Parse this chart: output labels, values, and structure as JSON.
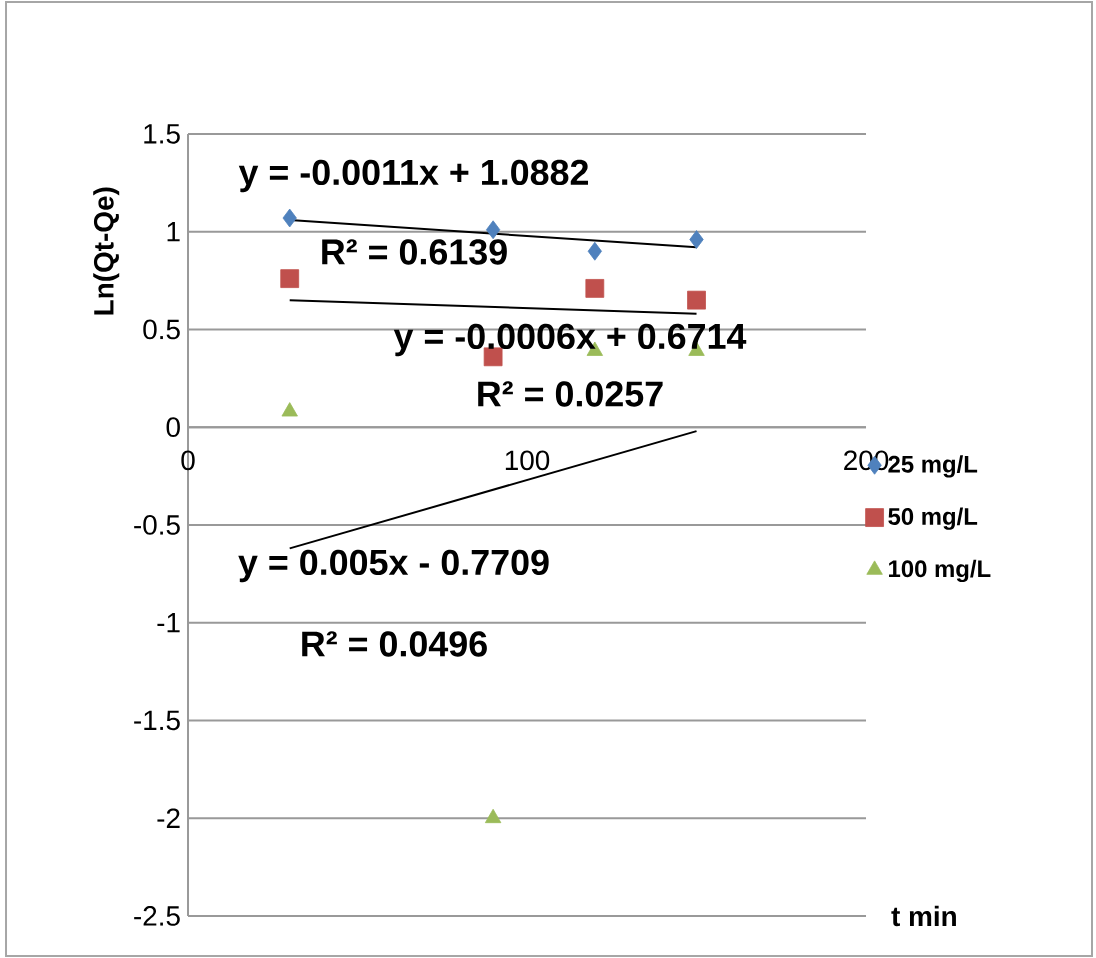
{
  "chart_data": {
    "type": "scatter",
    "xlabel": "t min",
    "ylabel": "Ln(Qt-Qe)",
    "xlim": [
      0,
      200
    ],
    "xticks": [
      0,
      100,
      200
    ],
    "ylim": [
      -2.5,
      1.5
    ],
    "yticks": [
      -2.5,
      -2,
      -1.5,
      -1,
      -0.5,
      0,
      0.5,
      1,
      1.5
    ],
    "grid": "y",
    "legend": "right",
    "series": [
      {
        "name": "25 mg/L",
        "color": "#4f81bd",
        "marker": "diamond",
        "x": [
          30,
          90,
          120,
          150
        ],
        "values": [
          1.07,
          1.01,
          0.9,
          0.96
        ]
      },
      {
        "name": "50 mg/L",
        "color": "#c0504d",
        "marker": "square",
        "x": [
          30,
          90,
          120,
          150
        ],
        "values": [
          0.76,
          0.36,
          0.71,
          0.65
        ]
      },
      {
        "name": "100 mg/L",
        "color": "#9bbb59",
        "marker": "triangle",
        "x": [
          30,
          90,
          120,
          150
        ],
        "values": [
          0.08,
          -2.0,
          0.39,
          0.39
        ]
      },
      {
        "type": "line",
        "color": "#000000",
        "x": [
          30,
          150
        ],
        "values": [
          1.06,
          0.92
        ]
      },
      {
        "type": "line",
        "color": "#000000",
        "x": [
          30,
          150
        ],
        "values": [
          0.65,
          0.58
        ]
      },
      {
        "type": "line",
        "color": "#000000",
        "x": [
          30,
          150
        ],
        "values": [
          -0.62,
          -0.02
        ]
      }
    ],
    "annotations": [
      "y = -0.0011x + 1.0882",
      "R² = 0.6139",
      "y = -0.0006x + 0.6714",
      "R² = 0.0257",
      "y = 0.005x - 0.7709",
      "R² = 0.0496"
    ]
  }
}
